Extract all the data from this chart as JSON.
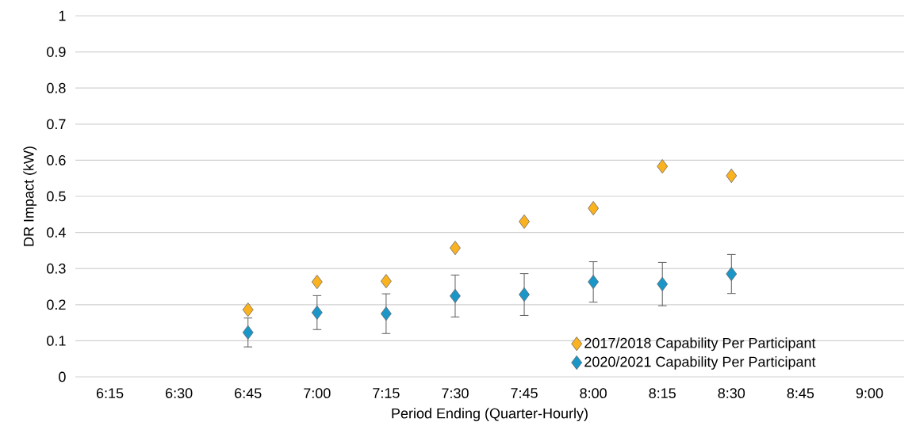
{
  "chart_data": {
    "type": "scatter",
    "xlabel": "Period Ending (Quarter-Hourly)",
    "ylabel": "DR Impact (kW)",
    "categories": [
      "6:15",
      "6:30",
      "6:45",
      "7:00",
      "7:15",
      "7:30",
      "7:45",
      "8:00",
      "8:15",
      "8:30",
      "8:45",
      "9:00"
    ],
    "series": [
      {
        "name": "2017/2018 Capability Per Participant",
        "color": "#fbb21f",
        "values": [
          null,
          null,
          0.186,
          0.263,
          0.265,
          0.357,
          0.43,
          0.467,
          0.583,
          0.557,
          null,
          null
        ]
      },
      {
        "name": "2020/2021 Capability Per Participant",
        "color": "#1a96c8",
        "values": [
          null,
          null,
          0.123,
          0.178,
          0.175,
          0.224,
          0.228,
          0.263,
          0.257,
          0.285,
          null,
          null
        ],
        "errors": [
          null,
          null,
          0.04,
          0.047,
          0.055,
          0.058,
          0.058,
          0.056,
          0.06,
          0.054,
          null,
          null
        ]
      }
    ],
    "ylim": [
      0,
      1
    ],
    "yticks": [
      0,
      0.1,
      0.2,
      0.3,
      0.4,
      0.5,
      0.6,
      0.7,
      0.8,
      0.9,
      1
    ],
    "grid": "y",
    "legend": "bottom right",
    "marker": "diamond"
  }
}
